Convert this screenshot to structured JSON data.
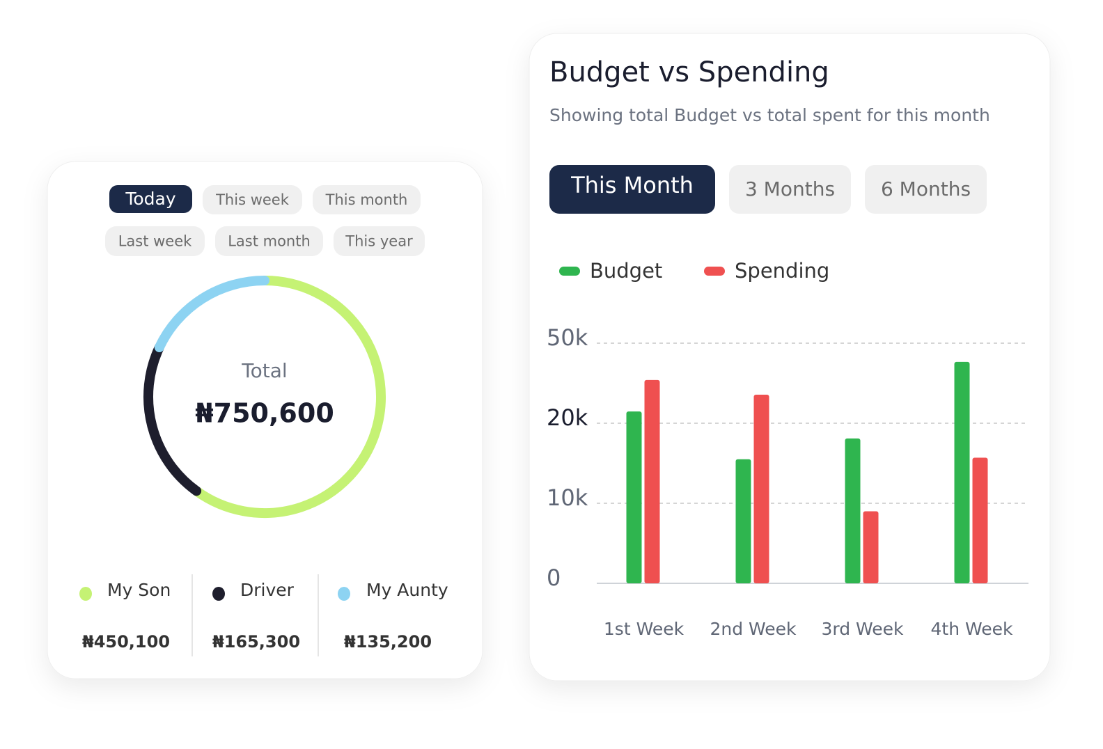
{
  "filters": {
    "items": [
      "Today",
      "This week",
      "This month",
      "Last week",
      "Last month",
      "This year"
    ],
    "active": 0
  },
  "tabs": {
    "items": [
      "This Month",
      "3 Months",
      "6 Months"
    ],
    "active": 0
  },
  "chart_data": [
    {
      "type": "donut",
      "center_label": "Total",
      "total": 750600,
      "total_label": "₦750,600",
      "categories": [
        "My Son",
        "Driver",
        "My Aunty"
      ],
      "values": [
        450100,
        165300,
        135200
      ],
      "value_labels": [
        "₦450,100",
        "₦165,300",
        "₦135,200"
      ],
      "colors": [
        "#c5f274",
        "#1e1e2d",
        "#8dd3f2"
      ]
    },
    {
      "type": "bar",
      "title": "Budget vs Spending",
      "subtitle": "Showing total Budget vs total spent for this month",
      "categories": [
        "1st Week",
        "2nd Week",
        "3rd Week",
        "4th Week"
      ],
      "series": [
        {
          "name": "Budget",
          "color": "#2fb54f",
          "values": [
            24400,
            15500,
            18100,
            43000
          ]
        },
        {
          "name": "Spending",
          "color": "#ef5050",
          "values": [
            36200,
            30700,
            9000,
            15700
          ]
        }
      ],
      "ylim": [
        0,
        50000
      ],
      "yticks": [
        0,
        {
          "value": 10000,
          "label": "10k"
        },
        {
          "value": 20000,
          "label": "20k"
        },
        {
          "value": 50000,
          "label": "50k"
        }
      ],
      "grid": true,
      "legend": "top"
    }
  ]
}
